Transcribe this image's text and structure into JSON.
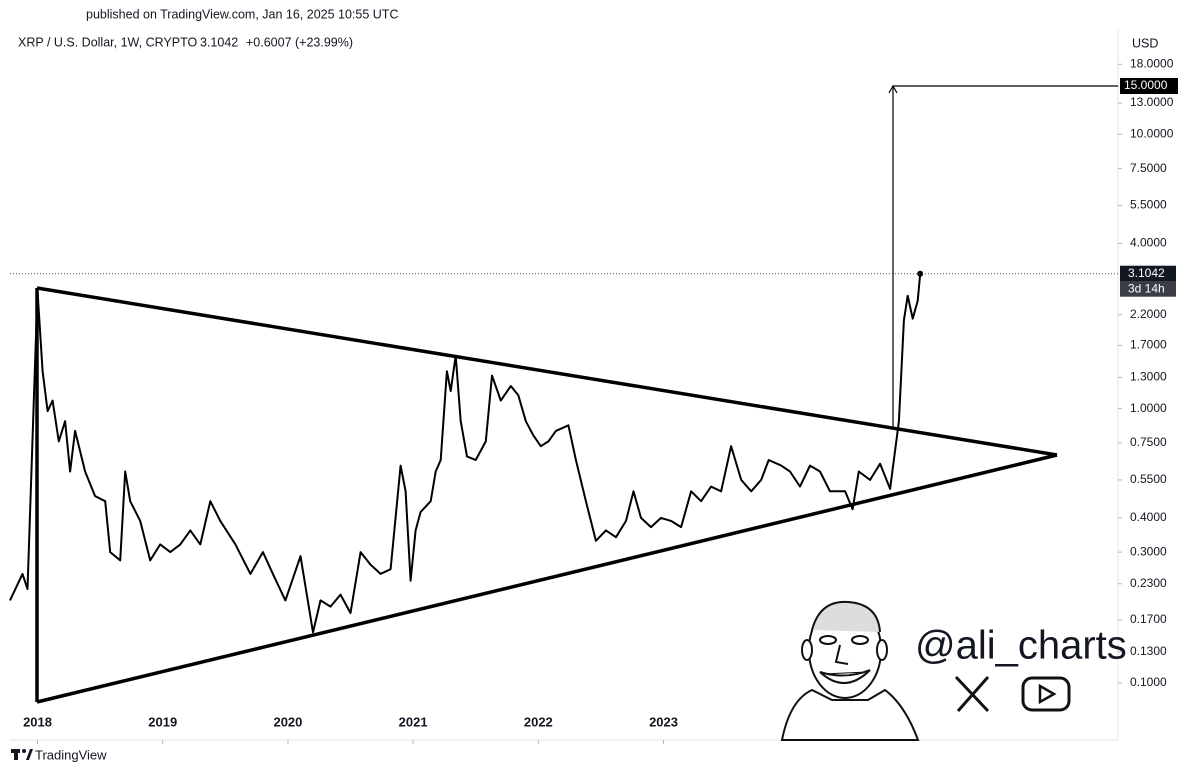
{
  "header": {
    "published": "published on TradingView.com, Jan 16, 2025 10:55 UTC"
  },
  "footer": {
    "brand": "TradingView"
  },
  "watermark": {
    "handle": "@ali_charts"
  },
  "chart_data": {
    "type": "line",
    "title": "XRP / U.S. Dollar, 1W, CRYPTO",
    "price": "3.1042",
    "change": "+0.6007 (+23.99%)",
    "y_unit": "USD",
    "log_scale": true,
    "grid": false,
    "color": "#000000",
    "x": [
      2017.78,
      2017.88,
      2017.92,
      2018.0,
      2018.04,
      2018.08,
      2018.12,
      2018.17,
      2018.22,
      2018.26,
      2018.3,
      2018.38,
      2018.46,
      2018.54,
      2018.58,
      2018.66,
      2018.7,
      2018.74,
      2018.82,
      2018.9,
      2018.98,
      2019.06,
      2019.14,
      2019.22,
      2019.3,
      2019.38,
      2019.46,
      2019.58,
      2019.7,
      2019.8,
      2019.88,
      2019.98,
      2020.1,
      2020.2,
      2020.26,
      2020.34,
      2020.42,
      2020.5,
      2020.58,
      2020.66,
      2020.74,
      2020.82,
      2020.9,
      2020.94,
      2020.98,
      2021.02,
      2021.06,
      2021.14,
      2021.18,
      2021.22,
      2021.27,
      2021.3,
      2021.34,
      2021.38,
      2021.43,
      2021.5,
      2021.58,
      2021.63,
      2021.7,
      2021.78,
      2021.84,
      2021.9,
      2021.96,
      2022.02,
      2022.08,
      2022.14,
      2022.24,
      2022.3,
      2022.38,
      2022.46,
      2022.54,
      2022.62,
      2022.7,
      2022.76,
      2022.82,
      2022.9,
      2022.98,
      2023.06,
      2023.14,
      2023.22,
      2023.3,
      2023.38,
      2023.46,
      2023.54,
      2023.62,
      2023.7,
      2023.78,
      2023.84,
      2023.94,
      2024.01,
      2024.09,
      2024.17,
      2024.25,
      2024.33,
      2024.45,
      2024.51,
      2024.56,
      2024.65,
      2024.73,
      2024.81,
      2024.88,
      2024.92,
      2024.95,
      2024.99,
      2025.03,
      2025.05
    ],
    "values": [
      0.2,
      0.25,
      0.22,
      2.69,
      1.37,
      0.98,
      1.07,
      0.76,
      0.9,
      0.59,
      0.83,
      0.59,
      0.48,
      0.46,
      0.3,
      0.28,
      0.59,
      0.46,
      0.39,
      0.28,
      0.32,
      0.3,
      0.32,
      0.36,
      0.32,
      0.46,
      0.39,
      0.32,
      0.25,
      0.3,
      0.25,
      0.2,
      0.29,
      0.153,
      0.2,
      0.19,
      0.21,
      0.18,
      0.3,
      0.27,
      0.25,
      0.26,
      0.62,
      0.5,
      0.236,
      0.36,
      0.42,
      0.46,
      0.59,
      0.65,
      1.37,
      1.16,
      1.56,
      0.9,
      0.67,
      0.65,
      0.76,
      1.32,
      1.07,
      1.21,
      1.12,
      0.9,
      0.8,
      0.73,
      0.76,
      0.83,
      0.87,
      0.65,
      0.46,
      0.33,
      0.36,
      0.34,
      0.39,
      0.5,
      0.4,
      0.37,
      0.4,
      0.39,
      0.37,
      0.5,
      0.46,
      0.52,
      0.5,
      0.73,
      0.55,
      0.5,
      0.55,
      0.65,
      0.62,
      0.59,
      0.52,
      0.62,
      0.59,
      0.5,
      0.5,
      0.43,
      0.59,
      0.55,
      0.63,
      0.51,
      0.9,
      2.1,
      2.58,
      2.13,
      2.47,
      3.1042
    ],
    "xlim": [
      2017.78,
      2026.63
    ],
    "xticks": [
      2018,
      2019,
      2020,
      2021,
      2022,
      2023
    ],
    "ylim": [
      0.062,
      24
    ],
    "yticks": [
      {
        "value": 0.1,
        "label": "0.1000"
      },
      {
        "value": 0.13,
        "label": "0.1300"
      },
      {
        "value": 0.17,
        "label": "0.1700"
      },
      {
        "value": 0.23,
        "label": "0.2300"
      },
      {
        "value": 0.3,
        "label": "0.3000"
      },
      {
        "value": 0.4,
        "label": "0.4000"
      },
      {
        "value": 0.55,
        "label": "0.5500"
      },
      {
        "value": 0.75,
        "label": "0.7500"
      },
      {
        "value": 1,
        "label": "1.0000"
      },
      {
        "value": 1.3,
        "label": "1.3000"
      },
      {
        "value": 1.7,
        "label": "1.7000"
      },
      {
        "value": 2.2,
        "label": "2.2000"
      },
      {
        "value": 4,
        "label": "4.0000"
      },
      {
        "value": 5.5,
        "label": "5.5000"
      },
      {
        "value": 7.5,
        "label": "7.5000"
      },
      {
        "value": 10,
        "label": "10.0000"
      },
      {
        "value": 13,
        "label": "13.0000"
      },
      {
        "value": 18,
        "label": "18.0000"
      }
    ],
    "last_price": {
      "value": 3.1042,
      "label": "3.1042"
    },
    "countdown": "3d 14h",
    "target": {
      "value": 15,
      "label": "15.0000"
    }
  }
}
